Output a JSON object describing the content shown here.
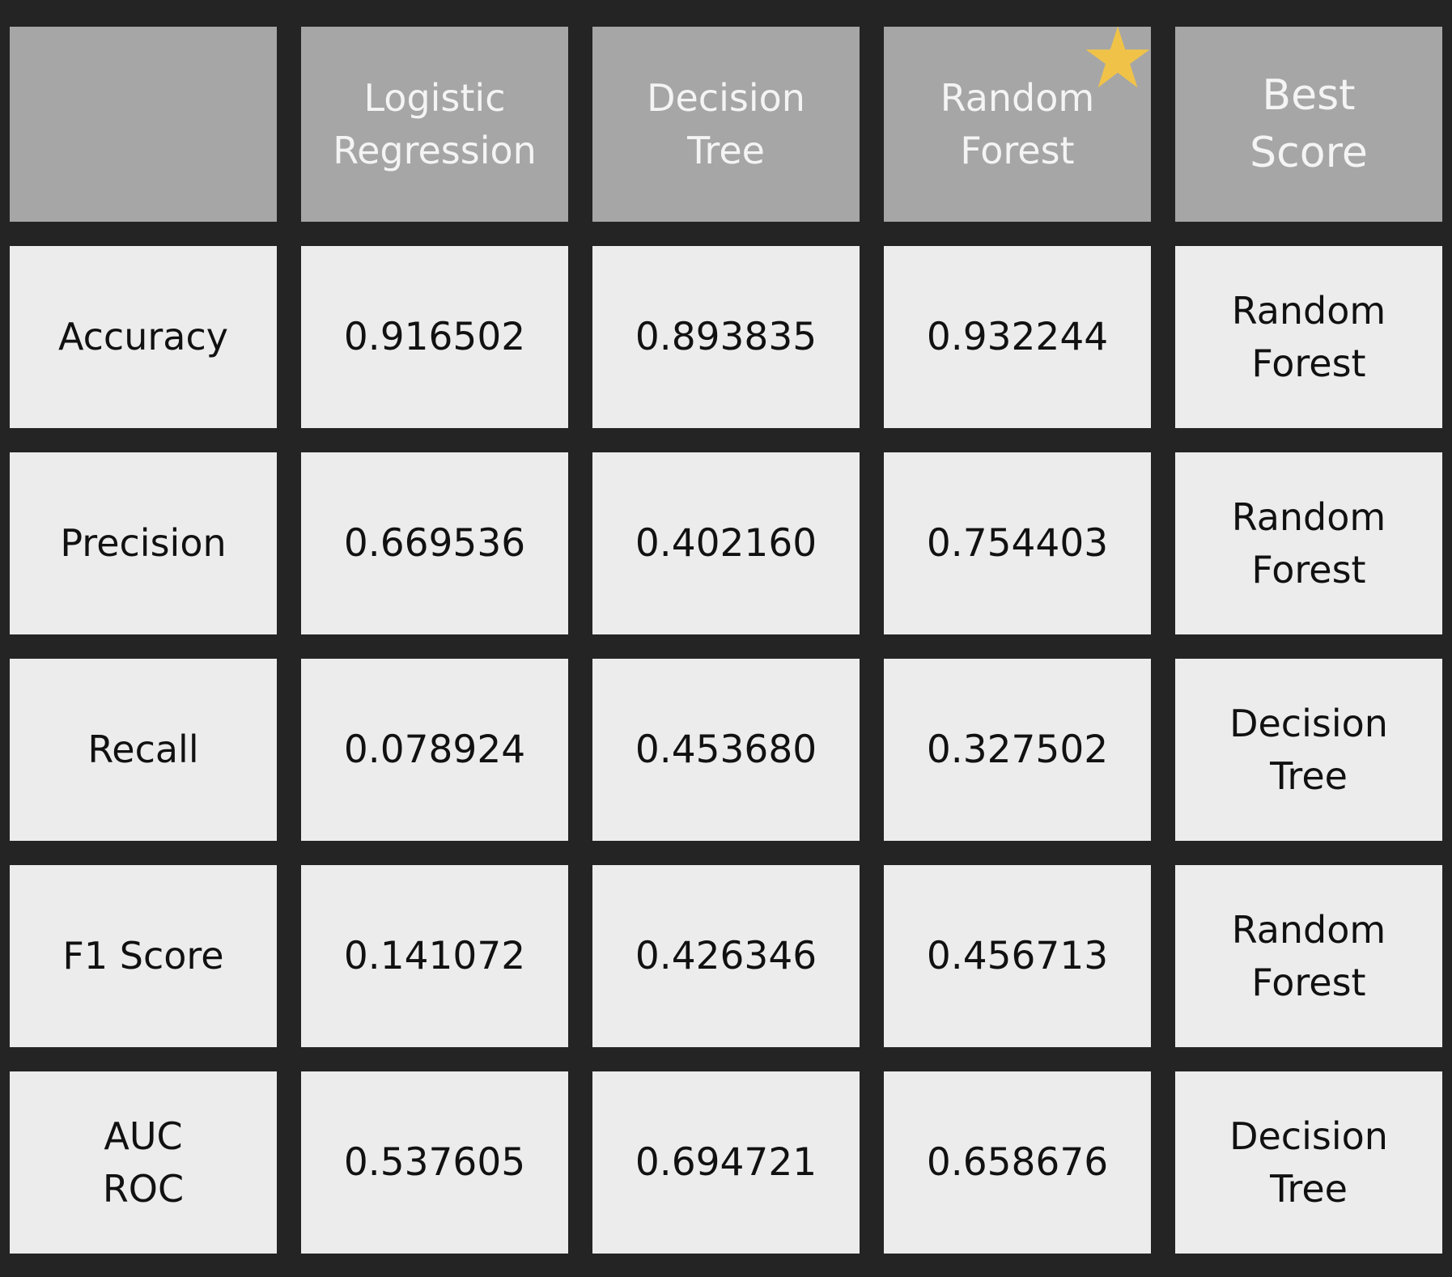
{
  "table": {
    "headers": [
      "",
      "Logistic\nRegression",
      "Decision\nTree",
      "Random\nForest",
      "Best\nScore"
    ],
    "rows": [
      {
        "metric": "Accuracy",
        "values": [
          "0.916502",
          "0.893835",
          "0.932244"
        ],
        "best": "Random\nForest"
      },
      {
        "metric": "Precision",
        "values": [
          "0.669536",
          "0.402160",
          "0.754403"
        ],
        "best": "Random\nForest"
      },
      {
        "metric": "Recall",
        "values": [
          "0.078924",
          "0.453680",
          "0.327502"
        ],
        "best": "Decision\nTree"
      },
      {
        "metric": "F1 Score",
        "values": [
          "0.141072",
          "0.426346",
          "0.456713"
        ],
        "best": "Random\nForest"
      },
      {
        "metric": "AUC\nROC",
        "values": [
          "0.537605",
          "0.694721",
          "0.658676"
        ],
        "best": "Decision\nTree"
      }
    ]
  },
  "highlight": {
    "icon": "star-icon",
    "column": "Random Forest",
    "color": "#f0c348"
  }
}
